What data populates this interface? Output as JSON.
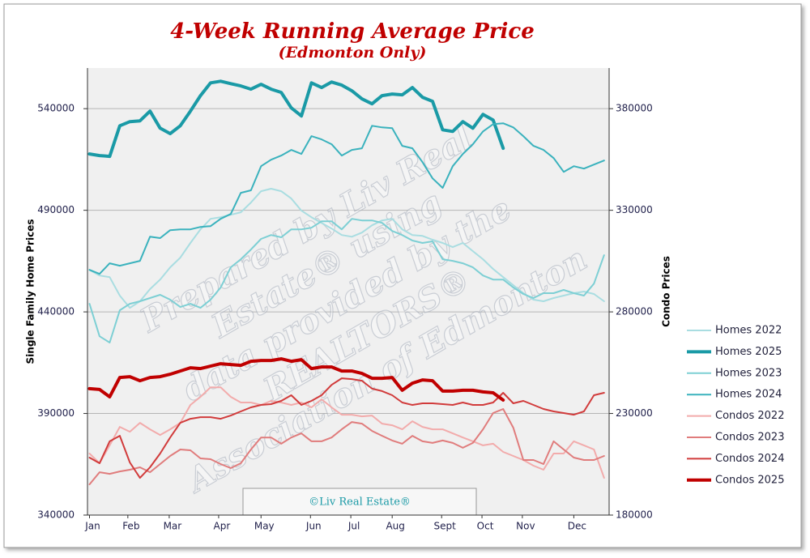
{
  "chart_data": {
    "type": "line",
    "title": "4-Week Running Average Price",
    "subtitle": "(Edmonton Only)",
    "ylabel": "Single Family Home Prices",
    "y2label": "Condo Prices",
    "watermark": [
      "Prepared by Liv Real",
      "Estate® using",
      "data provided by the",
      "REALTORS®",
      "Association of Edmonton"
    ],
    "copyright": "©Liv Real Estate®",
    "x": [
      1,
      2,
      3,
      4,
      5,
      6,
      7,
      8,
      9,
      10,
      11,
      12,
      13,
      14,
      15,
      16,
      17,
      18,
      19,
      20,
      21,
      22,
      23,
      24,
      25,
      26,
      27,
      28,
      29,
      30,
      31,
      32,
      33,
      34,
      35,
      36,
      37,
      38,
      39,
      40,
      41,
      42,
      43,
      44,
      45,
      46,
      47,
      48,
      49,
      50,
      51,
      52
    ],
    "xlim": [
      0.8,
      52.5
    ],
    "xticks": [
      {
        "value": 1,
        "label": "Jan"
      },
      {
        "value": 4.8,
        "label": "Feb"
      },
      {
        "value": 8.9,
        "label": "Mar"
      },
      {
        "value": 13.8,
        "label": "Apr"
      },
      {
        "value": 18,
        "label": "May"
      },
      {
        "value": 22.9,
        "label": "Jun"
      },
      {
        "value": 26.9,
        "label": "Jul"
      },
      {
        "value": 31,
        "label": "Aug"
      },
      {
        "value": 35.9,
        "label": "Sept"
      },
      {
        "value": 39.9,
        "label": "Oct"
      },
      {
        "value": 43.9,
        "label": "Nov"
      },
      {
        "value": 49,
        "label": "Dec"
      }
    ],
    "ylim": [
      340000,
      560000
    ],
    "yticks": [
      340000,
      390000,
      440000,
      490000,
      540000
    ],
    "y2lim": [
      180000,
      400000
    ],
    "y2ticks": [
      180000,
      230000,
      280000,
      330000,
      380000
    ],
    "grid": true,
    "legend": "right",
    "series": [
      {
        "name": "Homes 2022",
        "color": "#a9dde1",
        "line_width": 2,
        "values": [
          460700,
          457900,
          457100,
          448000,
          442000,
          445200,
          451200,
          455900,
          461900,
          466700,
          473900,
          480600,
          485800,
          486600,
          487800,
          489000,
          493800,
          499400,
          500600,
          499400,
          495800,
          489800,
          486600,
          483800,
          481000,
          477800,
          477000,
          479000,
          482600,
          485000,
          485800,
          480600,
          477800,
          477400,
          475500,
          473900,
          471900,
          473900,
          469900,
          465900,
          461100,
          457100,
          453100,
          449200,
          446000,
          445200,
          446800,
          448000,
          449200,
          450000,
          448800,
          445200
        ]
      },
      {
        "name": "Homes 2025",
        "color": "#1a9aa6",
        "line_width": 4,
        "values": [
          517700,
          516900,
          516500,
          531600,
          533600,
          534000,
          538800,
          530400,
          527700,
          531600,
          538800,
          546400,
          552700,
          553500,
          552300,
          551200,
          549600,
          552000,
          549600,
          548000,
          540400,
          536400,
          552700,
          550400,
          553100,
          551600,
          548800,
          544800,
          542400,
          546400,
          547200,
          546800,
          550400,
          545600,
          543600,
          529600,
          528800,
          533600,
          530400,
          537200,
          534400,
          520500,
          null,
          null,
          null,
          null,
          null,
          null,
          null,
          null,
          null,
          null
        ]
      },
      {
        "name": "Homes 2023",
        "color": "#7dcfd4",
        "line_width": 2,
        "values": [
          444000,
          428000,
          424900,
          440800,
          444000,
          445200,
          446800,
          448400,
          446000,
          442400,
          444000,
          442000,
          446000,
          452000,
          461900,
          465900,
          470700,
          475900,
          477800,
          476700,
          480600,
          480600,
          481400,
          484600,
          484600,
          480600,
          485800,
          485000,
          485000,
          483800,
          479800,
          477800,
          475100,
          473900,
          474700,
          465900,
          465100,
          463900,
          461900,
          457900,
          455900,
          455900,
          452000,
          448800,
          446800,
          449200,
          449200,
          450800,
          449200,
          448000,
          453900,
          467900
        ]
      },
      {
        "name": "Homes 2024",
        "color": "#3ab2bd",
        "line_width": 2,
        "values": [
          460700,
          458700,
          463900,
          462700,
          463900,
          465100,
          477000,
          476300,
          480200,
          480600,
          480600,
          481800,
          482200,
          485800,
          488200,
          498600,
          499800,
          511700,
          514900,
          516900,
          519700,
          517700,
          526500,
          524900,
          522500,
          516900,
          519700,
          520500,
          531600,
          530800,
          530400,
          521700,
          520500,
          513700,
          505700,
          501000,
          511700,
          517700,
          522500,
          528800,
          532400,
          532800,
          530800,
          526500,
          521700,
          519700,
          515700,
          508900,
          511700,
          510500,
          512500,
          514500
        ]
      },
      {
        "name": "Condos 2022",
        "color": "#f2abab",
        "line_width": 2,
        "axis": "y2",
        "values": [
          210300,
          205500,
          214300,
          223400,
          221000,
          225400,
          222200,
          219400,
          222200,
          225400,
          234200,
          238200,
          242900,
          242900,
          238200,
          235400,
          235400,
          234200,
          236200,
          235400,
          234200,
          235400,
          233000,
          237000,
          233000,
          229400,
          229400,
          228600,
          229000,
          225000,
          224200,
          222200,
          226200,
          223400,
          222200,
          222200,
          220200,
          218200,
          216300,
          214300,
          215100,
          211100,
          209100,
          207100,
          204300,
          202300,
          210300,
          210300,
          216300,
          214300,
          212300,
          198300
        ]
      },
      {
        "name": "Condos 2023",
        "color": "#e07c7c",
        "line_width": 2,
        "axis": "y2",
        "values": [
          195100,
          201100,
          200300,
          201500,
          202300,
          203500,
          201100,
          205100,
          209100,
          212300,
          211900,
          207900,
          207500,
          205100,
          203100,
          205500,
          212300,
          218200,
          218200,
          215100,
          218200,
          220200,
          216300,
          216300,
          218200,
          222200,
          225800,
          225000,
          221400,
          219000,
          216700,
          215100,
          219000,
          216300,
          215500,
          216700,
          215500,
          213100,
          215500,
          222200,
          230200,
          232200,
          223000,
          207100,
          207100,
          205100,
          216300,
          212300,
          208300,
          207100,
          207100,
          209100
        ]
      },
      {
        "name": "Condos 2024",
        "color": "#d13b3b",
        "line_width": 2,
        "axis": "y2",
        "values": [
          208300,
          205500,
          216300,
          219000,
          205900,
          198300,
          203500,
          210300,
          218200,
          225400,
          227400,
          228200,
          228200,
          227400,
          229000,
          231000,
          233000,
          234200,
          234600,
          236200,
          239000,
          234200,
          236200,
          239000,
          244100,
          247300,
          246900,
          246100,
          242200,
          241000,
          239000,
          235400,
          234200,
          235000,
          235000,
          234600,
          234200,
          235400,
          234200,
          234200,
          235400,
          240200,
          235000,
          236200,
          234200,
          232200,
          231000,
          230200,
          229400,
          231000,
          239000,
          240200
        ]
      },
      {
        "name": "Condos 2025",
        "color": "#c00000",
        "line_width": 4,
        "axis": "y2",
        "values": [
          242200,
          241800,
          238200,
          247700,
          248100,
          246100,
          247700,
          248100,
          249300,
          250900,
          252500,
          252100,
          253300,
          254500,
          254100,
          253700,
          255700,
          256100,
          256100,
          256900,
          255700,
          256500,
          252100,
          252900,
          252900,
          250900,
          250900,
          249700,
          247300,
          247300,
          247700,
          241400,
          244900,
          246500,
          246100,
          241000,
          241000,
          241400,
          241400,
          240600,
          240200,
          236600,
          null,
          null,
          null,
          null,
          null,
          null,
          null,
          null,
          null,
          null
        ]
      }
    ]
  }
}
